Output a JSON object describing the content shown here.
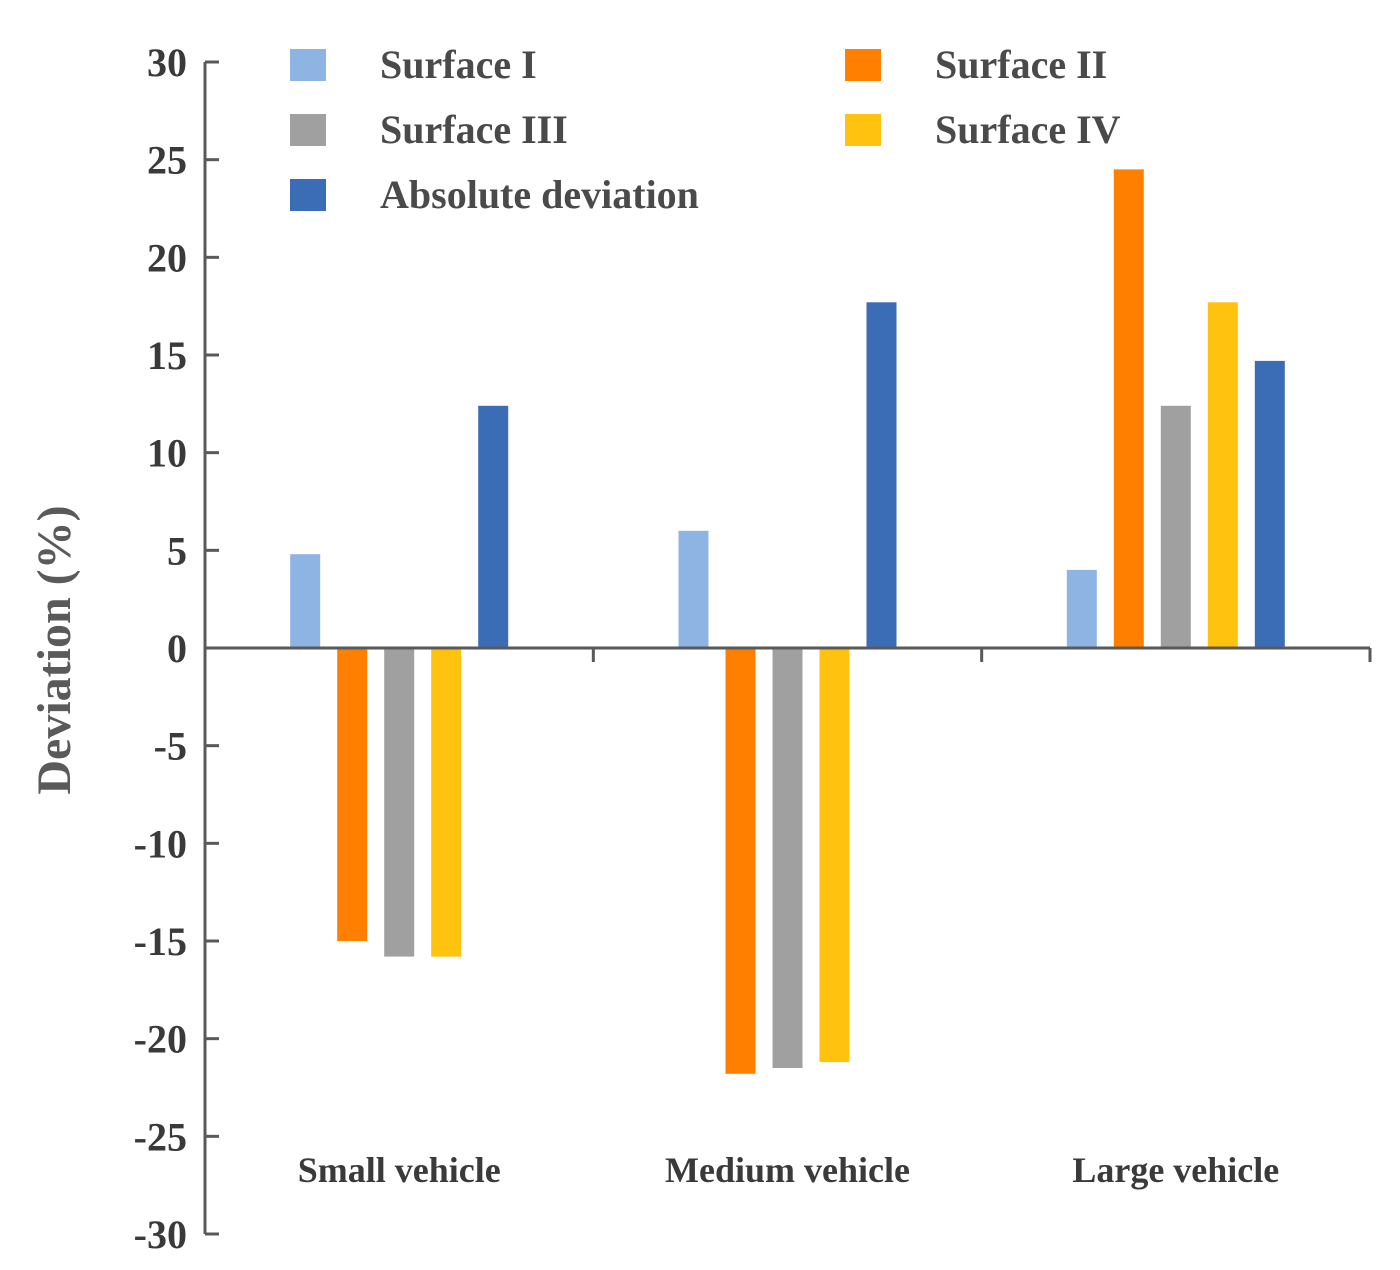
{
  "chart_data": {
    "type": "bar",
    "title": "",
    "xlabel": "",
    "ylabel": "Deviation (%)",
    "ylim": [
      -30,
      30
    ],
    "yticks": [
      30,
      25,
      20,
      15,
      10,
      5,
      0,
      -5,
      -10,
      -15,
      -20,
      -25,
      -30
    ],
    "categories": [
      "Small vehicle",
      "Medium vehicle",
      "Large vehicle"
    ],
    "series": [
      {
        "name": "Surface I",
        "color": "#8db4e2",
        "values": [
          4.8,
          6.0,
          4.0
        ]
      },
      {
        "name": "Surface II",
        "color": "#ff8000",
        "values": [
          -15.0,
          -21.8,
          24.5
        ]
      },
      {
        "name": "Surface III",
        "color": "#a0a0a0",
        "values": [
          -15.8,
          -21.5,
          12.4
        ]
      },
      {
        "name": "Surface IV",
        "color": "#ffc20e",
        "values": [
          -15.8,
          -21.2,
          17.7
        ]
      },
      {
        "name": "Absolute deviation",
        "color": "#3a6db5",
        "values": [
          12.4,
          17.7,
          14.7
        ]
      }
    ],
    "legend_position": "top"
  }
}
